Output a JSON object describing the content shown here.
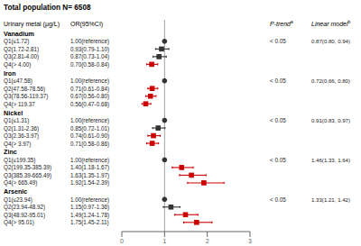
{
  "chart_data": {
    "type": "forest",
    "title": "Total population N= 6508",
    "column_headers": [
      {
        "text": "Urinary metal (μg/L)"
      },
      {
        "text": "OR(95%CI)"
      },
      {
        "text": "P-trend",
        "superscript": "a"
      },
      {
        "text": "Linear model",
        "superscript": "b"
      }
    ],
    "groups": [
      {
        "name": "Vanadium",
        "p_trend": "< 0.05",
        "linear_model": "0.87(0.80, 0.94)",
        "rows": [
          {
            "label": "Q1(≤1.72)",
            "value": 1.0,
            "value_label": "1.00(reference)",
            "lo": null,
            "hi": null,
            "reference": true,
            "color": "#333333"
          },
          {
            "label": "Q2(1.72-2.81)",
            "value": 0.93,
            "value_label": "0.93(0.79-1.10)",
            "lo": 0.79,
            "hi": 1.1,
            "reference": false,
            "color": "#333333"
          },
          {
            "label": "Q3(2.81-4.00)",
            "value": 0.87,
            "value_label": "0.87(0.73-1.04)",
            "lo": 0.73,
            "hi": 1.04,
            "reference": false,
            "color": "#333333"
          },
          {
            "label": "Q4(> 4.00)",
            "value": 0.7,
            "value_label": "0.70(0.58-0.84)",
            "lo": 0.58,
            "hi": 0.84,
            "reference": false,
            "color": "#cc0000"
          }
        ]
      },
      {
        "name": "Iron",
        "p_trend": "< 0.05",
        "linear_model": "0.72(0.66, 0.80)",
        "rows": [
          {
            "label": "Q1(≤47.58)",
            "value": 1.0,
            "value_label": "1.00(reference)",
            "lo": null,
            "hi": null,
            "reference": true,
            "color": "#333333"
          },
          {
            "label": "Q2(47.58-78.56)",
            "value": 0.71,
            "value_label": "0.71(0.61-0.84)",
            "lo": 0.61,
            "hi": 0.84,
            "reference": false,
            "color": "#cc0000"
          },
          {
            "label": "Q3(78.56-119.37)",
            "value": 0.67,
            "value_label": "0.67(0.56-0.80)",
            "lo": 0.56,
            "hi": 0.8,
            "reference": false,
            "color": "#cc0000"
          },
          {
            "label": "Q4(> 119.37",
            "value": 0.56,
            "value_label": "0.56(0.47-0.68)",
            "lo": 0.47,
            "hi": 0.68,
            "reference": false,
            "color": "#cc0000"
          }
        ]
      },
      {
        "name": "Nickel",
        "p_trend": "< 0.05",
        "linear_model": "0.91(0.83, 0.97)",
        "rows": [
          {
            "label": "Q1(≤1.31)",
            "value": 1.0,
            "value_label": "1.00(reference)",
            "lo": null,
            "hi": null,
            "reference": true,
            "color": "#333333"
          },
          {
            "label": "Q2(1.31-2.36)",
            "value": 0.85,
            "value_label": "0.85(0.72-1.01)",
            "lo": 0.72,
            "hi": 1.01,
            "reference": false,
            "color": "#333333"
          },
          {
            "label": "Q3(2.36-3.97)",
            "value": 0.74,
            "value_label": "0.74(0.61-0.90)",
            "lo": 0.61,
            "hi": 0.9,
            "reference": false,
            "color": "#cc0000"
          },
          {
            "label": "Q4(> 3.97)",
            "value": 0.71,
            "value_label": "0.71(0.58-0.86)",
            "lo": 0.58,
            "hi": 0.86,
            "reference": false,
            "color": "#cc0000"
          }
        ]
      },
      {
        "name": "Zinc",
        "p_trend": "< 0.05",
        "linear_model": "1.46(1.33, 1.64)",
        "rows": [
          {
            "label": "Q1(≤199.35)",
            "value": 1.0,
            "value_label": "1.00(reference)",
            "lo": null,
            "hi": null,
            "reference": true,
            "color": "#333333"
          },
          {
            "label": "Q2(199.35-385.39)",
            "value": 1.4,
            "value_label": "1.40(1.18-1.67)",
            "lo": 1.18,
            "hi": 1.67,
            "reference": false,
            "color": "#cc0000"
          },
          {
            "label": "Q3(385.39-665.49)",
            "value": 1.63,
            "value_label": "1.63(1.35-1.97)",
            "lo": 1.35,
            "hi": 1.97,
            "reference": false,
            "color": "#cc0000"
          },
          {
            "label": "Q4(> 665.49)",
            "value": 1.92,
            "value_label": "1.92(1.54-2.39)",
            "lo": 1.54,
            "hi": 2.39,
            "reference": false,
            "color": "#cc0000"
          }
        ]
      },
      {
        "name": "Arsenic",
        "p_trend": "< 0.05",
        "linear_model": "1.33(1.21, 1.42)",
        "rows": [
          {
            "label": "Q1(≤23.94)",
            "value": 1.0,
            "value_label": "1.00(reference)",
            "lo": null,
            "hi": null,
            "reference": true,
            "color": "#333333"
          },
          {
            "label": "Q2(23.94-48.92)",
            "value": 1.15,
            "value_label": "1.15(0.97-1.36)",
            "lo": 0.97,
            "hi": 1.36,
            "reference": false,
            "color": "#333333"
          },
          {
            "label": "Q3(48.92-95.01)",
            "value": 1.49,
            "value_label": "1.49(1.24-1.78)",
            "lo": 1.24,
            "hi": 1.78,
            "reference": false,
            "color": "#cc0000"
          },
          {
            "label": "Q4(> 95.01)",
            "value": 1.75,
            "value_label": "1.75(1.45-2.11)",
            "lo": 1.45,
            "hi": 2.11,
            "reference": false,
            "color": "#cc0000"
          }
        ]
      }
    ],
    "xlim": [
      0,
      3
    ],
    "xticks": [
      0,
      1,
      2,
      3
    ],
    "reference_line": 1,
    "grid": false
  }
}
